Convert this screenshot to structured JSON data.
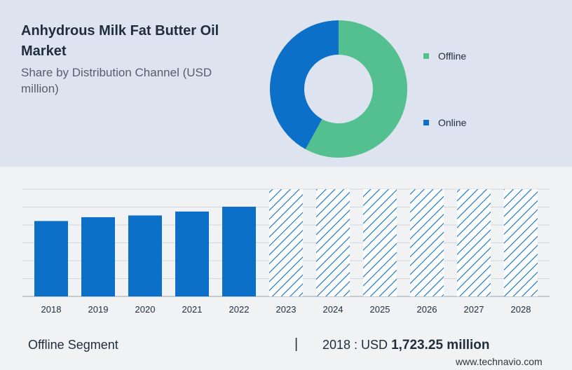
{
  "header": {
    "title": "Anhydrous Milk Fat Butter Oil Market",
    "subtitle": "Share by Distribution Channel (USD million)"
  },
  "legend": [
    {
      "label": "Offline",
      "color": "#55c08f"
    },
    {
      "label": "Online",
      "color": "#0c6fc8"
    }
  ],
  "footer": {
    "segment": "Offline Segment",
    "separator": "|",
    "year_label": "2018 : USD ",
    "value_label": "1,723.25 million",
    "brand": "www.technavio.com"
  },
  "chart_data": [
    {
      "type": "pie",
      "style": "donut",
      "labels": [
        "Offline",
        "Online"
      ],
      "values": [
        58,
        42
      ],
      "colors": [
        "#55c08f",
        "#0c6fc8"
      ]
    },
    {
      "type": "bar",
      "categories": [
        "2018",
        "2019",
        "2020",
        "2021",
        "2022",
        "2023",
        "2024",
        "2025",
        "2026",
        "2027",
        "2028"
      ],
      "values": [
        1723.25,
        1810,
        1850,
        1940,
        2050,
        2450,
        2450,
        2450,
        2450,
        2450,
        2450
      ],
      "forecast": [
        false,
        false,
        false,
        false,
        false,
        true,
        true,
        true,
        true,
        true,
        true
      ],
      "color": "#0c6fc8",
      "forecast_style": "hatched",
      "ylim": [
        0,
        2450
      ],
      "grid": true,
      "xlabel": "",
      "ylabel": ""
    }
  ]
}
